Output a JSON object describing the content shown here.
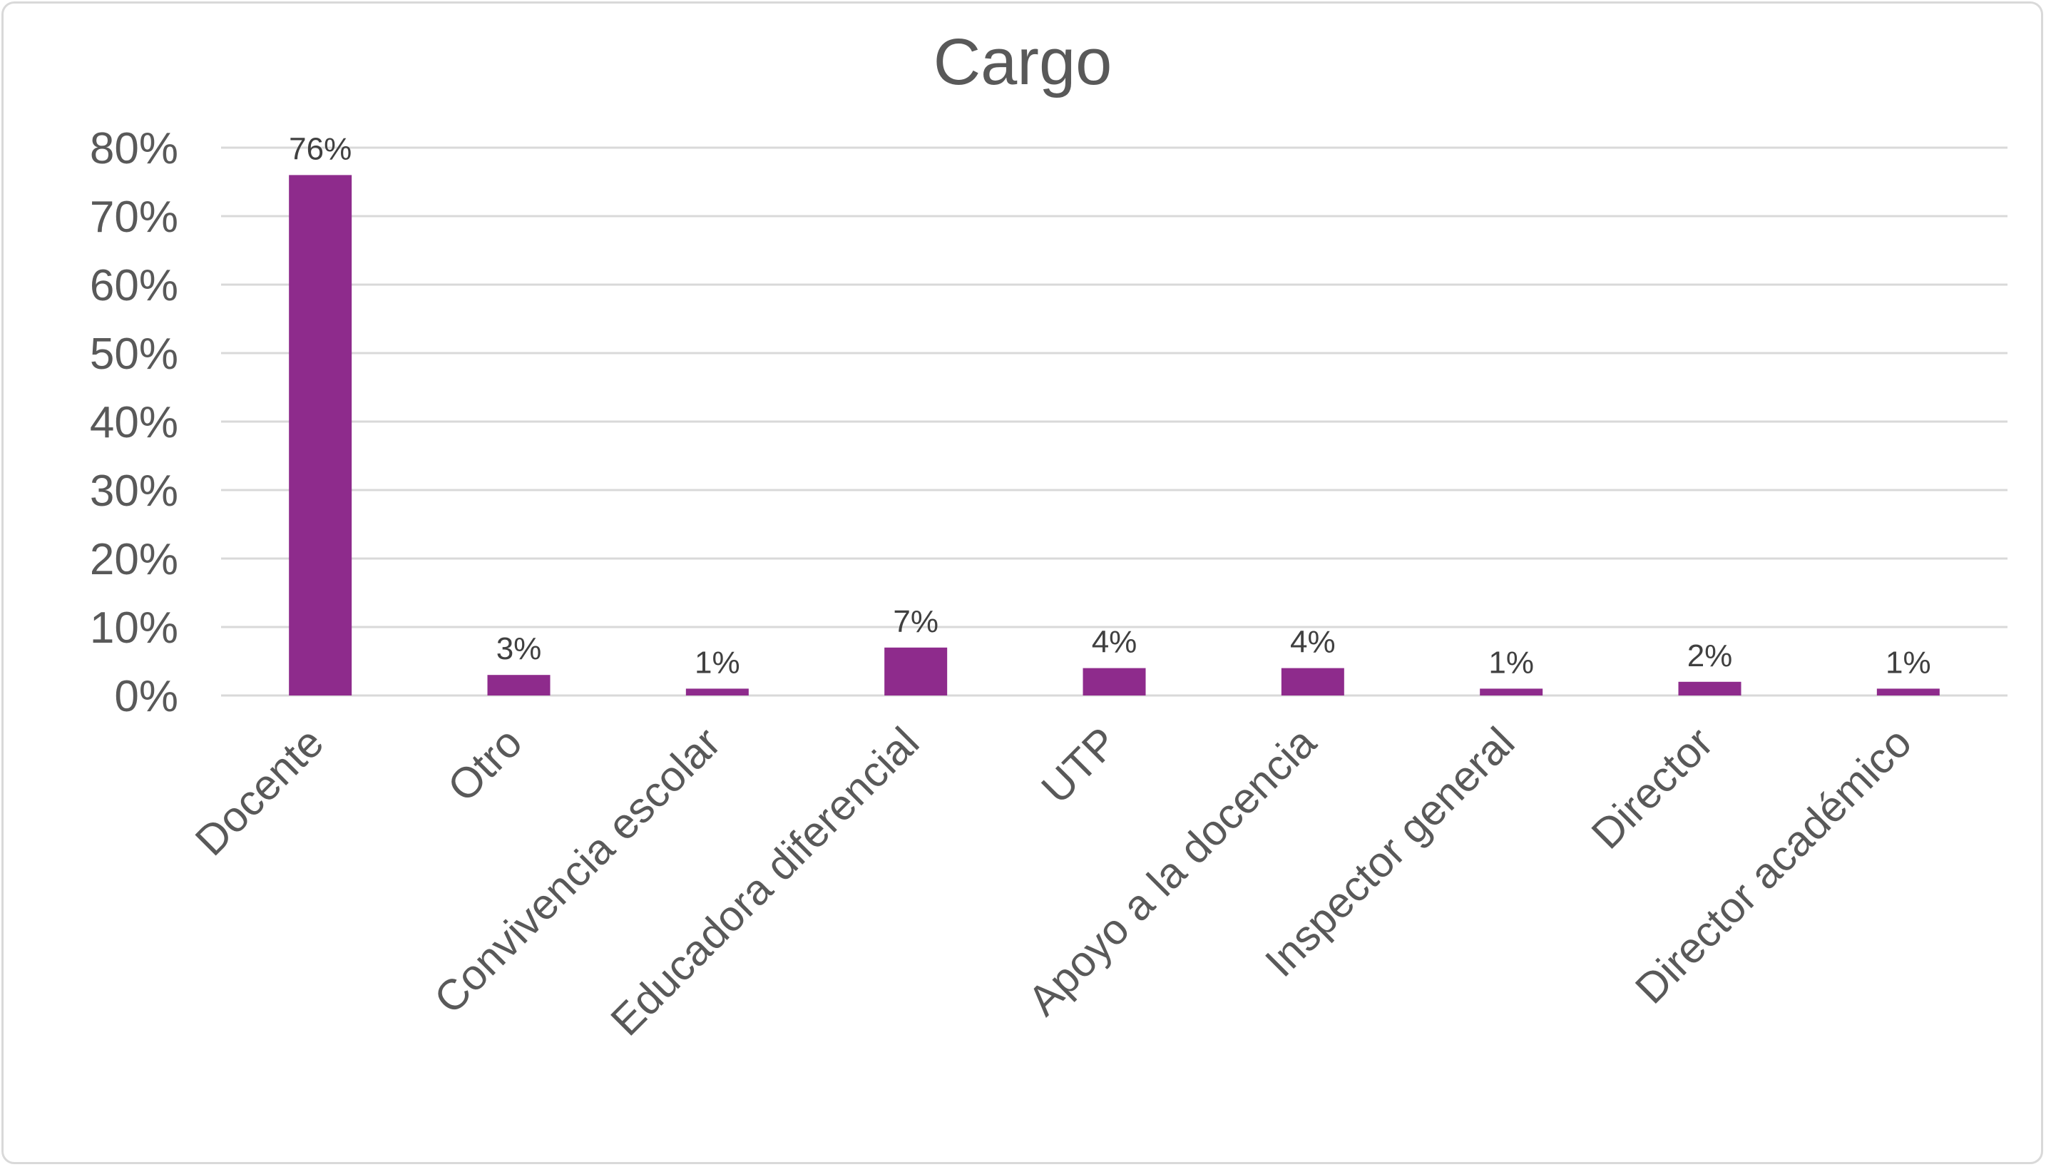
{
  "chart_data": {
    "type": "bar",
    "title": "Cargo",
    "xlabel": "",
    "ylabel": "",
    "categories": [
      "Docente",
      "Otro",
      "Convivencia escolar",
      "Educadora diferencial",
      "UTP",
      "Apoyo a la docencia",
      "Inspector general",
      "Director",
      "Director académico"
    ],
    "values": [
      76,
      3,
      1,
      7,
      4,
      4,
      1,
      2,
      1
    ],
    "data_labels": [
      "76%",
      "3%",
      "1%",
      "7%",
      "4%",
      "4%",
      "1%",
      "2%",
      "1%"
    ],
    "ylim": [
      0,
      80
    ],
    "yticks": [
      0,
      10,
      20,
      30,
      40,
      50,
      60,
      70,
      80
    ],
    "ytick_labels": [
      "0%",
      "10%",
      "20%",
      "30%",
      "40%",
      "50%",
      "60%",
      "70%",
      "80%"
    ],
    "grid": true,
    "legend": "none",
    "bar_color": "#8e2b8c"
  }
}
